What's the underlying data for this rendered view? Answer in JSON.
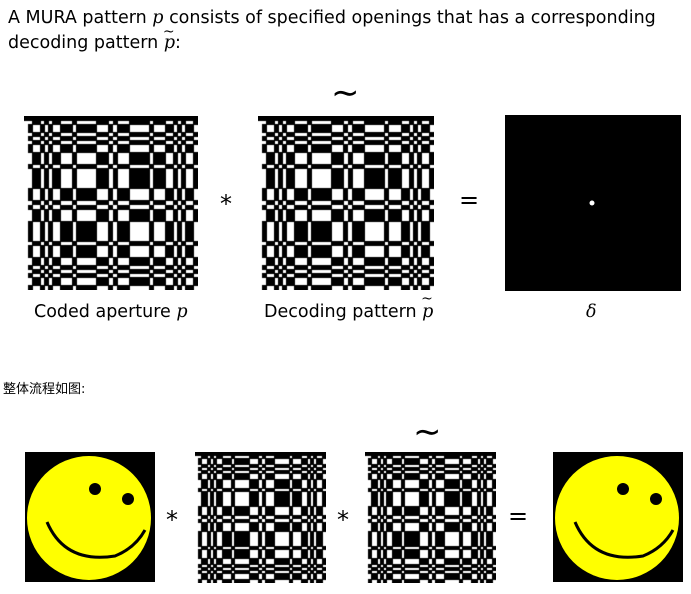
{
  "intro": {
    "line1": "A MURA pattern p consists of specified openings that has a corresponding",
    "line1_pre": "A MURA pattern ",
    "line1_var": "p",
    "line1_post": " consists of specified openings that has a corresponding",
    "line2_pre": "decoding pattern ",
    "line2_var": "p",
    "line2_post": ":"
  },
  "row1": {
    "caption_coded_pre": "Coded aperture ",
    "caption_coded_var": "p",
    "caption_decoding_pre": "Decoding pattern ",
    "caption_decoding_var": "p",
    "caption_delta": "δ",
    "op_convolve": "*",
    "op_equals": "=",
    "tilde": "∼"
  },
  "flow_label": "整体流程如图:",
  "row2": {
    "op_convolve_1": "*",
    "op_convolve_2": "*",
    "op_equals": "=",
    "tilde": "∼"
  },
  "colors": {
    "smiley_face": "#ffff00",
    "smiley_background": "#000000",
    "delta_background": "#000000"
  }
}
